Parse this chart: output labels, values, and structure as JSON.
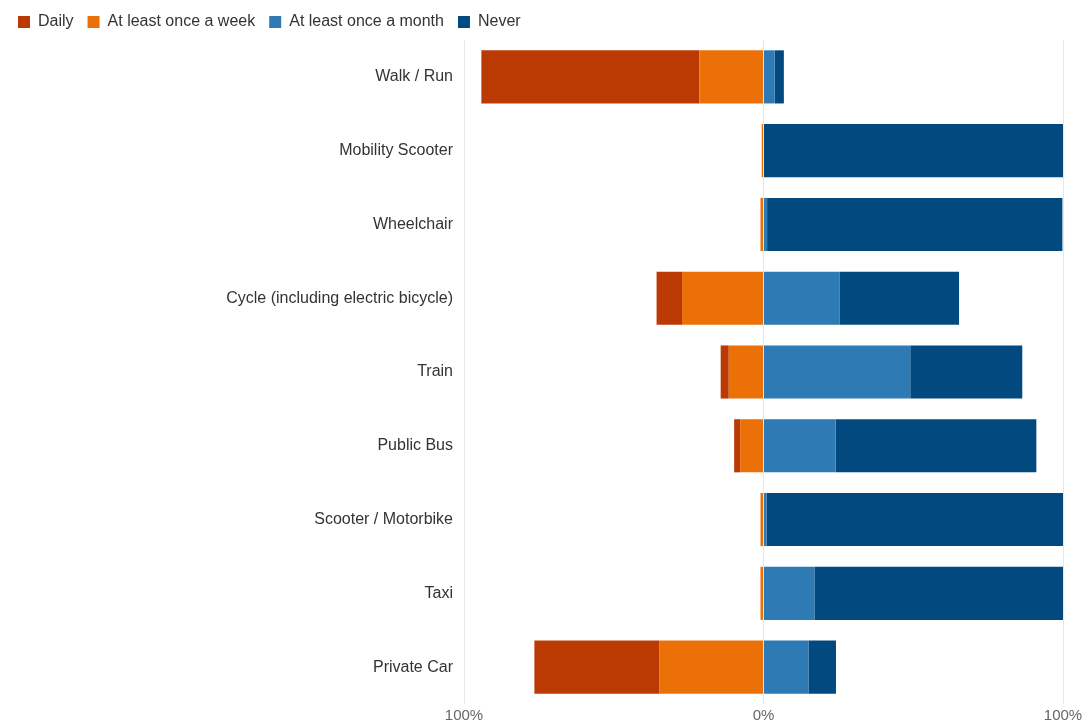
{
  "chart_data": {
    "type": "bar",
    "orientation": "horizontal",
    "stacked": true,
    "categories": [
      "Walk / Run",
      "Mobility Scooter",
      "Wheelchair",
      "Cycle (including electric bicycle)",
      "Train",
      "Public Bus",
      "Scooter / Motorbike",
      "Taxi",
      "Private Car"
    ],
    "series": [
      {
        "name": "Daily",
        "color": "#bb3a03",
        "values": [
          -72.8,
          null,
          null,
          -8.5,
          -2.7,
          -2,
          null,
          null,
          -41.8
        ]
      },
      {
        "name": "At least once a week",
        "color": "#eb7008",
        "values": [
          -21.4,
          -0.6,
          -1,
          -27.2,
          -11.6,
          -7.8,
          -1,
          -1,
          -34.7
        ]
      },
      {
        "name": "At least once a month",
        "color": "#2e7ab4",
        "values": [
          3.7,
          null,
          1.2,
          25.5,
          49,
          24.1,
          1,
          17,
          15
        ]
      },
      {
        "name": "Never",
        "color": "#02497f",
        "values": [
          3.1,
          100,
          98.6,
          39.8,
          37.4,
          67,
          99,
          83,
          9.2
        ]
      }
    ],
    "xlim": [
      -100,
      100
    ],
    "xticks": [
      {
        "value": -100,
        "label": "100%"
      },
      {
        "value": 0,
        "label": "0%"
      },
      {
        "value": 100,
        "label": "100%"
      }
    ],
    "grid": "x",
    "legend": "top left"
  }
}
